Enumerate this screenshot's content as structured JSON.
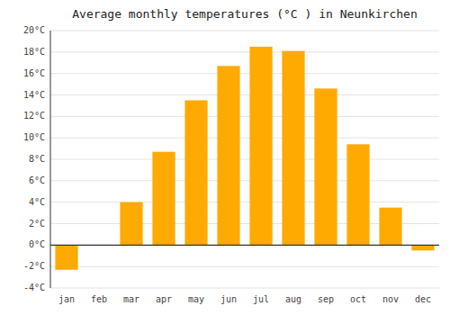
{
  "chart_data": {
    "type": "bar",
    "title": "Average monthly temperatures (°C ) in Neunkirchen",
    "categories": [
      "jan",
      "feb",
      "mar",
      "apr",
      "may",
      "jun",
      "jul",
      "aug",
      "sep",
      "oct",
      "nov",
      "dec"
    ],
    "values": [
      -2.3,
      0.0,
      4.0,
      8.7,
      13.5,
      16.7,
      18.5,
      18.1,
      14.6,
      9.4,
      3.5,
      -0.5
    ],
    "color": "#FFAA00",
    "ylim": [
      -4,
      20
    ],
    "yticks": [
      {
        "value": -4,
        "label": "-4°C"
      },
      {
        "value": -2,
        "label": "-2°C"
      },
      {
        "value": 0,
        "label": "0°C"
      },
      {
        "value": 2,
        "label": "2°C"
      },
      {
        "value": 4,
        "label": "4°C"
      },
      {
        "value": 6,
        "label": "6°C"
      },
      {
        "value": 8,
        "label": "8°C"
      },
      {
        "value": 10,
        "label": "10°C"
      },
      {
        "value": 12,
        "label": "12°C"
      },
      {
        "value": 14,
        "label": "14°C"
      },
      {
        "value": 16,
        "label": "16°C"
      },
      {
        "value": 18,
        "label": "18°C"
      },
      {
        "value": 20,
        "label": "20°C"
      }
    ],
    "grid": true
  }
}
